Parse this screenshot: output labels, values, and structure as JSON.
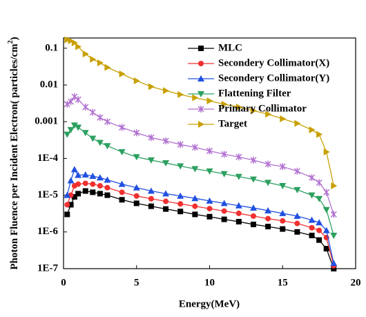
{
  "chart_data": {
    "type": "line",
    "ylabel": {
      "text": "Photon Fluence per Incident Electron( particles/cm",
      "sup": "2",
      "end": ")"
    },
    "xlabel": "Energy(MeV)",
    "yscale": "log",
    "legend": "upper right",
    "xlim": [
      0,
      20
    ],
    "xticks": [
      0,
      5,
      10,
      15,
      20
    ],
    "ylim": [
      1e-07,
      0.19
    ],
    "yticks": [
      {
        "value": 1e-07,
        "label": "1E-7"
      },
      {
        "value": 1e-06,
        "label": "1E-6"
      },
      {
        "value": 1e-05,
        "label": "1E-5"
      },
      {
        "value": 0.0001,
        "label": "1E-4"
      },
      0.001,
      0.01,
      0.1
    ],
    "x": [
      0.25,
      0.5,
      0.75,
      1,
      1.5,
      2,
      2.5,
      3,
      4,
      5,
      6,
      7,
      8,
      9,
      10,
      11,
      12,
      13,
      14,
      15,
      16,
      17,
      17.5,
      18,
      18.5
    ],
    "series": [
      {
        "name": "MLC",
        "color": "#000000",
        "marker": "square",
        "values": [
          3e-06,
          5.5e-06,
          9e-06,
          1.1e-05,
          1.3e-05,
          1.2e-05,
          1.1e-05,
          1e-05,
          7.5e-06,
          6e-06,
          5e-06,
          4.2e-06,
          3.6e-06,
          3e-06,
          2.6e-06,
          2.2e-06,
          1.9e-06,
          1.6e-06,
          1.4e-06,
          1.2e-06,
          1e-06,
          8e-07,
          6e-07,
          3.5e-07,
          1e-07
        ]
      },
      {
        "name": "Secondery Collimator(X)",
        "color": "#f03030",
        "marker": "circle",
        "values": [
          5.5e-06,
          1e-05,
          1.8e-05,
          2e-05,
          2.1e-05,
          2e-05,
          1.8e-05,
          1.6e-05,
          1.2e-05,
          9.5e-06,
          8e-06,
          6.8e-06,
          5.8e-06,
          5e-06,
          4.3e-06,
          3.7e-06,
          3.2e-06,
          2.7e-06,
          2.3e-06,
          2e-06,
          1.7e-06,
          1.3e-06,
          1.1e-06,
          7e-07,
          1.2e-07
        ]
      },
      {
        "name": "Secondery Collimator(Y)",
        "color": "#2050e0",
        "marker": "triangle-up",
        "values": [
          1e-05,
          2.5e-05,
          5e-05,
          3.5e-05,
          3.6e-05,
          3.3e-05,
          3e-05,
          2.6e-05,
          2e-05,
          1.6e-05,
          1.3e-05,
          1.1e-05,
          9.5e-06,
          8.2e-06,
          7e-06,
          6e-06,
          5.2e-06,
          4.5e-06,
          3.8e-06,
          3.2e-06,
          2.7e-06,
          2.1e-06,
          1.8e-06,
          1.1e-06,
          1.4e-07
        ]
      },
      {
        "name": "Flattening Filter",
        "color": "#2ca060",
        "marker": "triangle-down",
        "values": [
          0.00045,
          0.0006,
          0.0008,
          0.0007,
          0.0005,
          0.00035,
          0.00027,
          0.00022,
          0.00015,
          0.00011,
          9e-05,
          7.5e-05,
          6.2e-05,
          5.2e-05,
          4.5e-05,
          3.8e-05,
          3.2e-05,
          2.7e-05,
          2.2e-05,
          1.8e-05,
          1.4e-05,
          1e-05,
          8e-06,
          4e-06,
          8e-07
        ]
      },
      {
        "name": "Primary Collimator",
        "color": "#b070d0",
        "marker": "star",
        "values": [
          0.003,
          0.0035,
          0.0048,
          0.004,
          0.0025,
          0.0018,
          0.0013,
          0.001,
          0.0007,
          0.0005,
          0.00037,
          0.0003,
          0.00024,
          0.0002,
          0.00016,
          0.00013,
          0.00011,
          9e-05,
          7e-05,
          6e-05,
          4.5e-05,
          3e-05,
          2.2e-05,
          1.2e-05,
          3e-06
        ]
      },
      {
        "name": "Target",
        "color": "#c8a000",
        "marker": "triangle-right",
        "values": [
          0.17,
          0.16,
          0.14,
          0.11,
          0.07,
          0.05,
          0.04,
          0.03,
          0.02,
          0.013,
          0.009,
          0.007,
          0.0055,
          0.0045,
          0.0037,
          0.003,
          0.0025,
          0.002,
          0.0016,
          0.0012,
          0.0009,
          0.0006,
          0.00045,
          0.00015,
          1.8e-05
        ]
      }
    ]
  }
}
